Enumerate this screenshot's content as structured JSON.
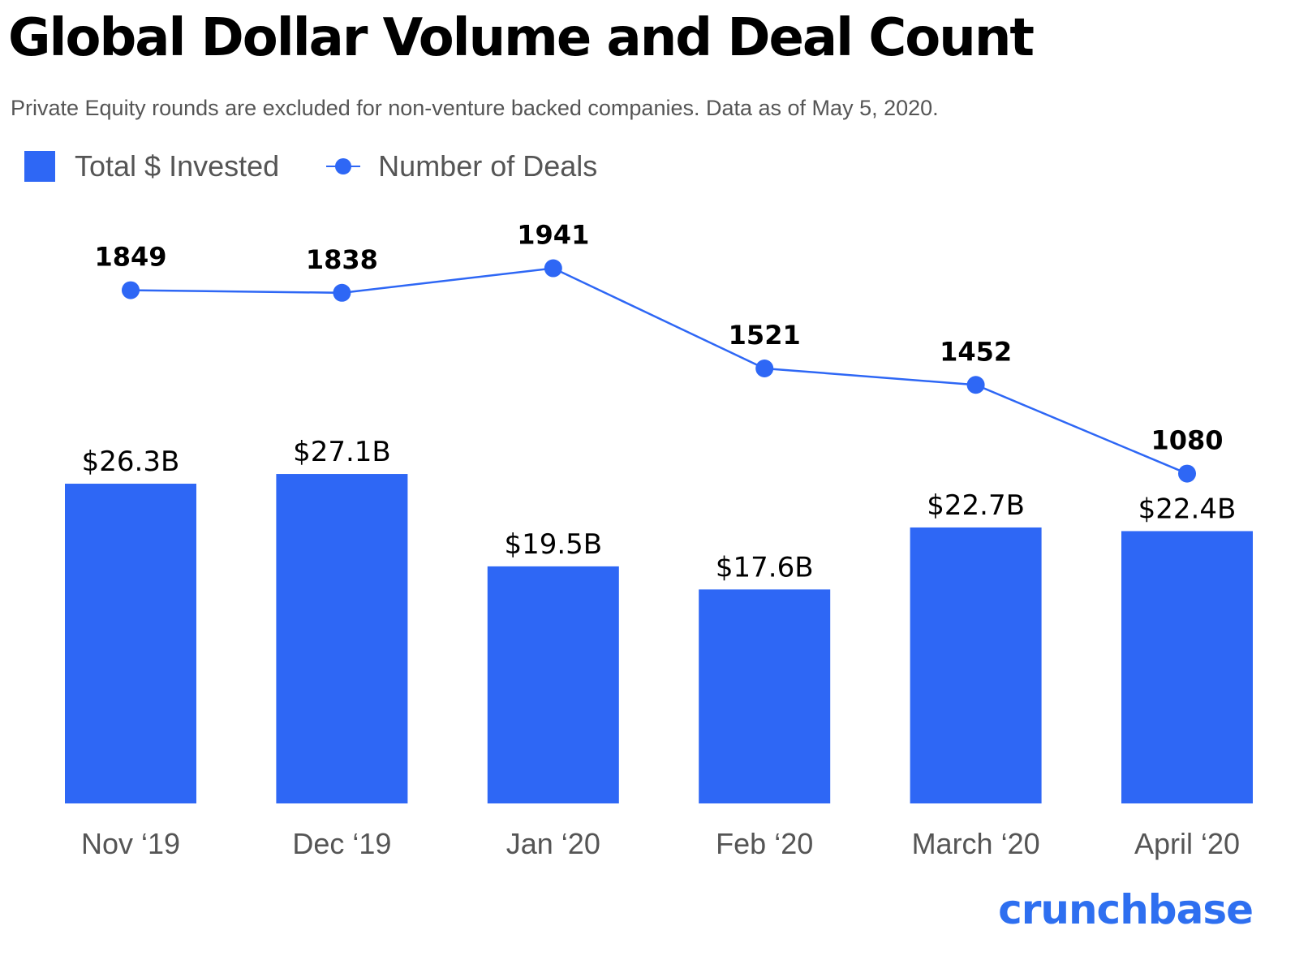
{
  "chart_data": {
    "type": "bar+line",
    "title": "Global Dollar Volume and Deal Count",
    "subtitle": "Private Equity rounds are excluded for non-venture backed companies. Data as of May 5, 2020.",
    "categories": [
      "Nov ‘19",
      "Dec ‘19",
      "Jan ‘20",
      "Feb ‘20",
      "March ‘20",
      "April ‘20"
    ],
    "series": [
      {
        "name": "Total $ Invested",
        "type": "bar",
        "color": "#2e67f5",
        "values": [
          26.3,
          27.1,
          19.5,
          17.6,
          22.7,
          22.4
        ],
        "labels": [
          "$26.3B",
          "$27.1B",
          "$19.5B",
          "$17.6B",
          "$22.7B",
          "$22.4B"
        ]
      },
      {
        "name": "Number of Deals",
        "type": "line",
        "color": "#2e67f5",
        "values": [
          1849,
          1838,
          1941,
          1521,
          1452,
          1080
        ],
        "labels": [
          "1849",
          "1838",
          "1941",
          "1521",
          "1452",
          "1080"
        ]
      }
    ],
    "grid": false,
    "legend": "top-left"
  },
  "brand": {
    "logo": "crunchbase",
    "color": "#2e6ff0"
  }
}
